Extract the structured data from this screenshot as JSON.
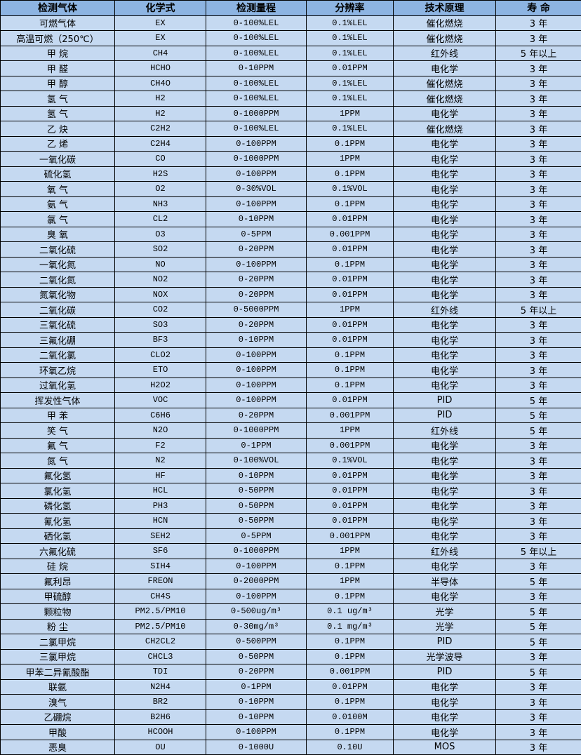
{
  "colors": {
    "header_bg": "#8db4e2",
    "row_bg": "#c5d9f1",
    "border": "#000000"
  },
  "headers": [
    "检测气体",
    "化学式",
    "检测量程",
    "分辨率",
    "技术原理",
    "寿 命"
  ],
  "rows": [
    [
      "可燃气体",
      "EX",
      "0-100%LEL",
      "0.1%LEL",
      "催化燃烧",
      "3 年"
    ],
    [
      "高温可燃（250℃）",
      "EX",
      "0-100%LEL",
      "0.1%LEL",
      "催化燃烧",
      "3 年"
    ],
    [
      "甲 烷",
      "CH4",
      "0-100%LEL",
      "0.1%LEL",
      "红外线",
      "5 年以上"
    ],
    [
      "甲 醛",
      "HCHO",
      "0-10PPM",
      "0.01PPM",
      "电化学",
      "3 年"
    ],
    [
      "甲 醇",
      "CH4O",
      "0-100%LEL",
      "0.1%LEL",
      "催化燃烧",
      "3 年"
    ],
    [
      "氢 气",
      "H2",
      "0-100%LEL",
      "0.1%LEL",
      "催化燃烧",
      "3 年"
    ],
    [
      "氢 气",
      "H2",
      "0-1000PPM",
      "1PPM",
      "电化学",
      "3 年"
    ],
    [
      "乙 炔",
      "C2H2",
      "0-100%LEL",
      "0.1%LEL",
      "催化燃烧",
      "3 年"
    ],
    [
      "乙 烯",
      "C2H4",
      "0-100PPM",
      "0.1PPM",
      "电化学",
      "3 年"
    ],
    [
      "一氧化碳",
      "CO",
      "0-1000PPM",
      "1PPM",
      "电化学",
      "3 年"
    ],
    [
      "硫化氢",
      "H2S",
      "0-100PPM",
      "0.1PPM",
      "电化学",
      "3 年"
    ],
    [
      "氧 气",
      "O2",
      "0-30%VOL",
      "0.1%VOL",
      "电化学",
      "3 年"
    ],
    [
      "氨 气",
      "NH3",
      "0-100PPM",
      "0.1PPM",
      "电化学",
      "3 年"
    ],
    [
      "氯 气",
      "CL2",
      "0-10PPM",
      "0.01PPM",
      "电化学",
      "3 年"
    ],
    [
      "臭 氧",
      "O3",
      "0-5PPM",
      "0.001PPM",
      "电化学",
      "3 年"
    ],
    [
      "二氧化硫",
      "SO2",
      "0-20PPM",
      "0.01PPM",
      "电化学",
      "3 年"
    ],
    [
      "一氧化氮",
      "NO",
      "0-100PPM",
      "0.1PPM",
      "电化学",
      "3 年"
    ],
    [
      "二氧化氮",
      "NO2",
      "0-20PPM",
      "0.01PPM",
      "电化学",
      "3 年"
    ],
    [
      "氮氧化物",
      "NOX",
      "0-20PPM",
      "0.01PPM",
      "电化学",
      "3 年"
    ],
    [
      "二氧化碳",
      "CO2",
      "0-5000PPM",
      "1PPM",
      "红外线",
      "5 年以上"
    ],
    [
      "三氧化硫",
      "SO3",
      "0-20PPM",
      "0.01PPM",
      "电化学",
      "3 年"
    ],
    [
      "三氟化硼",
      "BF3",
      "0-10PPM",
      "0.01PPM",
      "电化学",
      "3 年"
    ],
    [
      "二氧化氯",
      "CLO2",
      "0-100PPM",
      "0.1PPM",
      "电化学",
      "3 年"
    ],
    [
      "环氧乙烷",
      "ETO",
      "0-100PPM",
      "0.1PPM",
      "电化学",
      "3 年"
    ],
    [
      "过氧化氢",
      "H2O2",
      "0-100PPM",
      "0.1PPM",
      "电化学",
      "3 年"
    ],
    [
      "挥发性气体",
      "VOC",
      "0-100PPM",
      "0.01PPM",
      "PID",
      "5 年"
    ],
    [
      "甲 苯",
      "C6H6",
      "0-20PPM",
      "0.001PPM",
      "PID",
      "5 年"
    ],
    [
      "笑 气",
      "N2O",
      "0-1000PPM",
      "1PPM",
      "红外线",
      "5 年"
    ],
    [
      "氟 气",
      "F2",
      "0-1PPM",
      "0.001PPM",
      "电化学",
      "3 年"
    ],
    [
      "氮 气",
      "N2",
      "0-100%VOL",
      "0.1%VOL",
      "电化学",
      "3 年"
    ],
    [
      "氟化氢",
      "HF",
      "0-10PPM",
      "0.01PPM",
      "电化学",
      "3 年"
    ],
    [
      "氯化氢",
      "HCL",
      "0-50PPM",
      "0.01PPM",
      "电化学",
      "3 年"
    ],
    [
      "磷化氢",
      "PH3",
      "0-50PPM",
      "0.01PPM",
      "电化学",
      "3 年"
    ],
    [
      "氰化氢",
      "HCN",
      "0-50PPM",
      "0.01PPM",
      "电化学",
      "3 年"
    ],
    [
      "硒化氢",
      "SEH2",
      "0-5PPM",
      "0.001PPM",
      "电化学",
      "3 年"
    ],
    [
      "六氟化硫",
      "SF6",
      "0-1000PPM",
      "1PPM",
      "红外线",
      "5 年以上"
    ],
    [
      "硅 烷",
      "SIH4",
      "0-100PPM",
      "0.1PPM",
      "电化学",
      "3 年"
    ],
    [
      "氟利昂",
      "FREON",
      "0-2000PPM",
      "1PPM",
      "半导体",
      "5 年"
    ],
    [
      "甲硫醇",
      "CH4S",
      "0-100PPM",
      "0.1PPM",
      "电化学",
      "3 年"
    ],
    [
      "颗粒物",
      "PM2.5/PM10",
      "0-500ug/m³",
      "0.1 ug/m³",
      "光学",
      "5 年"
    ],
    [
      "粉 尘",
      "PM2.5/PM10",
      "0-30mg/m³",
      "0.1 mg/m³",
      "光学",
      "5 年"
    ],
    [
      "二氯甲烷",
      "CH2CL2",
      "0-500PPM",
      "0.1PPM",
      "PID",
      "5 年"
    ],
    [
      "三氯甲烷",
      "CHCL3",
      "0-50PPM",
      "0.1PPM",
      "光学波导",
      "3 年"
    ],
    [
      "甲苯二异氰酸酯",
      "TDI",
      "0-20PPM",
      "0.001PPM",
      "PID",
      "5 年"
    ],
    [
      "联氨",
      "N2H4",
      "0-1PPM",
      "0.01PPM",
      "电化学",
      "3 年"
    ],
    [
      "溴气",
      "BR2",
      "0-10PPM",
      "0.1PPM",
      "电化学",
      "3 年"
    ],
    [
      "乙硼烷",
      "B2H6",
      "0-10PPM",
      "0.0100M",
      "电化学",
      "3 年"
    ],
    [
      "甲酸",
      "HCOOH",
      "0-100PPM",
      "0.1PPM",
      "电化学",
      "3 年"
    ],
    [
      "恶臭",
      "OU",
      "0-1000U",
      "0.10U",
      "MOS",
      "3 年"
    ]
  ]
}
